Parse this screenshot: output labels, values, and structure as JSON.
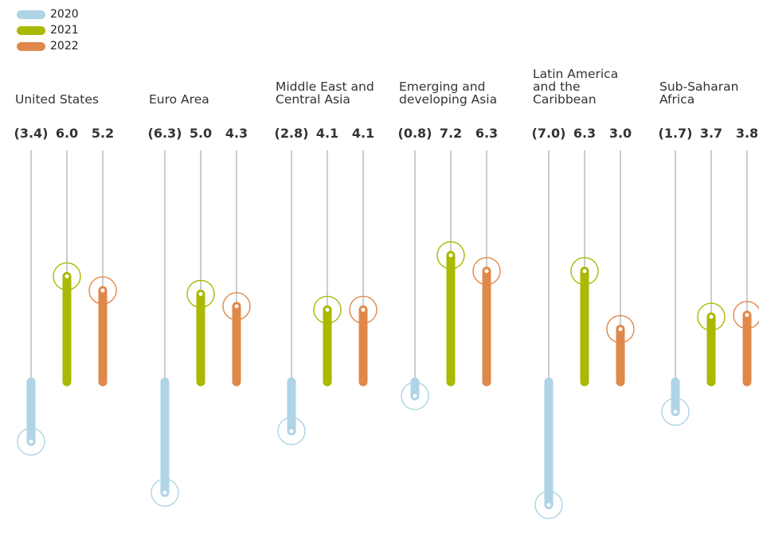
{
  "chart_data": {
    "type": "bar",
    "categories": [
      "United States",
      "Euro Area",
      "Middle East and Central Asia",
      "Emerging and developing Asia",
      "Latin America and the Caribbean",
      "Sub-Saharan Africa"
    ],
    "category_labels": [
      "United States",
      "Euro Area",
      "Middle East and\nCentral Asia",
      "Emerging and\ndeveloping Asia",
      "Latin America\nand the\nCaribbean",
      "Sub-Saharan\nAfrica"
    ],
    "series": [
      {
        "name": "2020",
        "color": "#aed4e6",
        "values": [
          -3.4,
          -6.3,
          -2.8,
          -0.8,
          -7.0,
          -1.7
        ],
        "display": [
          "(3.4)",
          "(6.3)",
          "(2.8)",
          "(0.8)",
          "(7.0)",
          "(1.7)"
        ]
      },
      {
        "name": "2021",
        "color": "#a9b904",
        "values": [
          6.0,
          5.0,
          4.1,
          7.2,
          6.3,
          3.7
        ],
        "display": [
          "6.0",
          "5.0",
          "4.1",
          "7.2",
          "6.3",
          "3.7"
        ]
      },
      {
        "name": "2022",
        "color": "#e0884a",
        "values": [
          5.2,
          4.3,
          4.1,
          6.3,
          3.0,
          3.8
        ],
        "display": [
          "5.2",
          "4.3",
          "4.1",
          "6.3",
          "3.0",
          "3.8"
        ]
      }
    ],
    "legend_position": "top-left",
    "grid": false,
    "title": "",
    "xlabel": "",
    "ylabel": ""
  }
}
